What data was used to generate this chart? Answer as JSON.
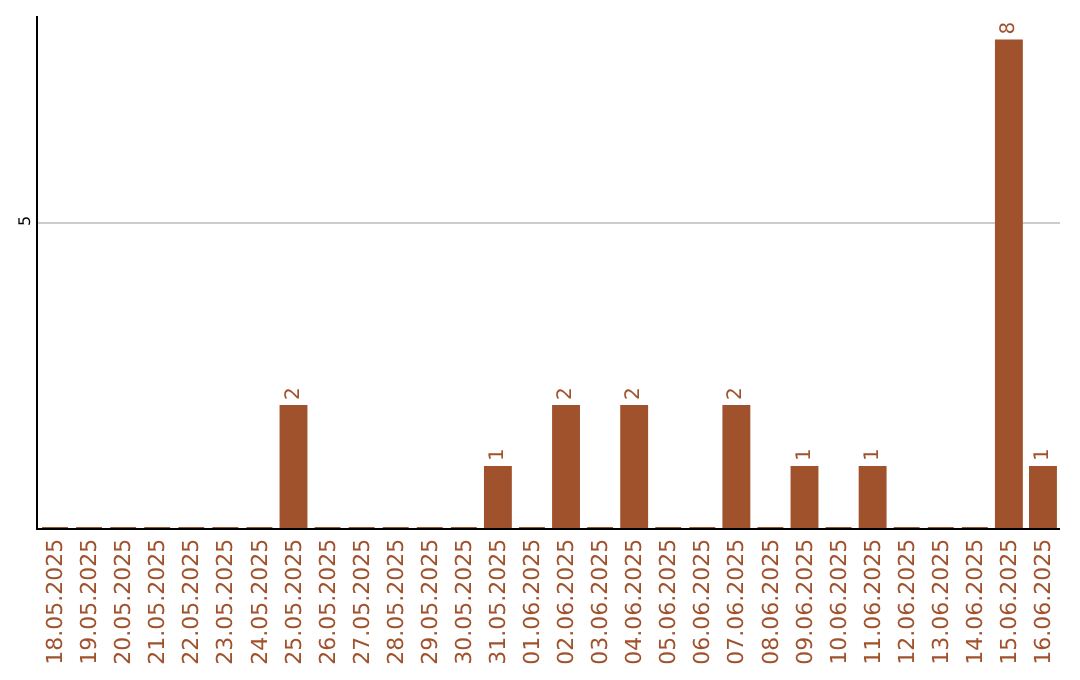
{
  "chart_data": {
    "type": "bar",
    "categories": [
      "18.05.2025",
      "19.05.2025",
      "20.05.2025",
      "21.05.2025",
      "22.05.2025",
      "23.05.2025",
      "24.05.2025",
      "25.05.2025",
      "26.05.2025",
      "27.05.2025",
      "28.05.2025",
      "29.05.2025",
      "30.05.2025",
      "31.05.2025",
      "01.06.2025",
      "02.06.2025",
      "03.06.2025",
      "04.06.2025",
      "05.06.2025",
      "06.06.2025",
      "07.06.2025",
      "08.06.2025",
      "09.06.2025",
      "10.06.2025",
      "11.06.2025",
      "12.06.2025",
      "13.06.2025",
      "14.06.2025",
      "15.06.2025",
      "16.06.2025"
    ],
    "values": [
      0,
      0,
      0,
      0,
      0,
      0,
      0,
      2,
      0,
      0,
      0,
      0,
      0,
      1,
      0,
      2,
      0,
      2,
      0,
      0,
      2,
      0,
      1,
      0,
      1,
      0,
      0,
      0,
      8,
      1
    ],
    "value_labels": [
      null,
      null,
      null,
      null,
      null,
      null,
      null,
      "2",
      null,
      null,
      null,
      null,
      null,
      "1",
      null,
      "2",
      null,
      "2",
      null,
      null,
      "2",
      null,
      "1",
      null,
      "1",
      null,
      null,
      null,
      "8",
      "1"
    ],
    "color": "#a0522d",
    "ylim": [
      0,
      8.4
    ],
    "yticks": [
      5
    ],
    "grid": "y",
    "legend": false
  }
}
